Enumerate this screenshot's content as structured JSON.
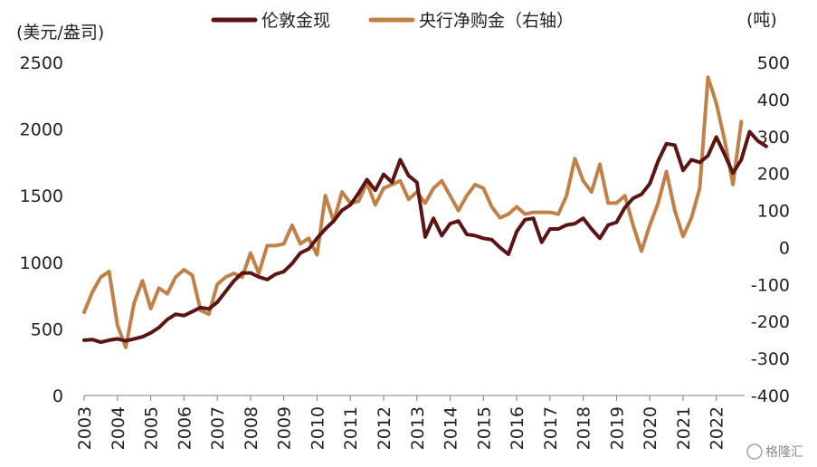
{
  "chart_data": {
    "type": "line",
    "title": "",
    "y_left_label": "(美元/盎司)",
    "y_right_label": "(吨)",
    "xlim": [
      2003,
      2022.85
    ],
    "y_left_lim": [
      0,
      2500
    ],
    "y_right_lim": [
      -400,
      500
    ],
    "x_ticks": [
      "2003",
      "2004",
      "2005",
      "2006",
      "2007",
      "2008",
      "2009",
      "2010",
      "2011",
      "2012",
      "2013",
      "2014",
      "2015",
      "2016",
      "2017",
      "2018",
      "2019",
      "2020",
      "2021",
      "2022"
    ],
    "y_left_ticks": [
      "0",
      "500",
      "1000",
      "1500",
      "2000",
      "2500"
    ],
    "y_right_ticks": [
      "-400",
      "-300",
      "-200",
      "-100",
      "0",
      "100",
      "200",
      "300",
      "400",
      "500"
    ],
    "grid": false,
    "legend_position": "top-center",
    "series": [
      {
        "name": "伦敦金现",
        "axis": "left",
        "color": "#5a1414",
        "points": [
          [
            2003.0,
            415
          ],
          [
            2003.25,
            420
          ],
          [
            2003.5,
            400
          ],
          [
            2003.75,
            415
          ],
          [
            2004.0,
            425
          ],
          [
            2004.25,
            410
          ],
          [
            2004.5,
            425
          ],
          [
            2004.75,
            440
          ],
          [
            2005.0,
            470
          ],
          [
            2005.25,
            510
          ],
          [
            2005.5,
            570
          ],
          [
            2005.75,
            610
          ],
          [
            2006.0,
            600
          ],
          [
            2006.25,
            630
          ],
          [
            2006.5,
            660
          ],
          [
            2006.75,
            650
          ],
          [
            2007.0,
            700
          ],
          [
            2007.25,
            780
          ],
          [
            2007.5,
            860
          ],
          [
            2007.75,
            920
          ],
          [
            2008.0,
            920
          ],
          [
            2008.25,
            890
          ],
          [
            2008.5,
            870
          ],
          [
            2008.75,
            910
          ],
          [
            2009.0,
            930
          ],
          [
            2009.25,
            990
          ],
          [
            2009.5,
            1070
          ],
          [
            2009.75,
            1100
          ],
          [
            2010.0,
            1180
          ],
          [
            2010.25,
            1250
          ],
          [
            2010.5,
            1310
          ],
          [
            2010.75,
            1390
          ],
          [
            2011.0,
            1430
          ],
          [
            2011.25,
            1520
          ],
          [
            2011.5,
            1620
          ],
          [
            2011.75,
            1540
          ],
          [
            2012.0,
            1660
          ],
          [
            2012.25,
            1600
          ],
          [
            2012.5,
            1770
          ],
          [
            2012.75,
            1650
          ],
          [
            2013.0,
            1600
          ],
          [
            2013.25,
            1190
          ],
          [
            2013.5,
            1330
          ],
          [
            2013.75,
            1200
          ],
          [
            2014.0,
            1290
          ],
          [
            2014.25,
            1310
          ],
          [
            2014.5,
            1210
          ],
          [
            2014.75,
            1200
          ],
          [
            2015.0,
            1180
          ],
          [
            2015.25,
            1170
          ],
          [
            2015.5,
            1110
          ],
          [
            2015.75,
            1060
          ],
          [
            2016.0,
            1230
          ],
          [
            2016.25,
            1320
          ],
          [
            2016.5,
            1330
          ],
          [
            2016.75,
            1150
          ],
          [
            2017.0,
            1250
          ],
          [
            2017.25,
            1250
          ],
          [
            2017.5,
            1280
          ],
          [
            2017.75,
            1290
          ],
          [
            2018.0,
            1330
          ],
          [
            2018.25,
            1250
          ],
          [
            2018.5,
            1180
          ],
          [
            2018.75,
            1280
          ],
          [
            2019.0,
            1300
          ],
          [
            2019.25,
            1410
          ],
          [
            2019.5,
            1480
          ],
          [
            2019.75,
            1510
          ],
          [
            2020.0,
            1590
          ],
          [
            2020.25,
            1760
          ],
          [
            2020.5,
            1890
          ],
          [
            2020.75,
            1880
          ],
          [
            2021.0,
            1690
          ],
          [
            2021.25,
            1770
          ],
          [
            2021.5,
            1750
          ],
          [
            2021.75,
            1800
          ],
          [
            2022.0,
            1940
          ],
          [
            2022.25,
            1810
          ],
          [
            2022.5,
            1670
          ],
          [
            2022.75,
            1770
          ],
          [
            2023.0,
            1980
          ],
          [
            2023.25,
            1910
          ],
          [
            2023.5,
            1870
          ]
        ]
      },
      {
        "name": "央行净购金（右轴）",
        "axis": "right",
        "color": "#bf8148",
        "points": [
          [
            2003.0,
            -175
          ],
          [
            2003.25,
            -120
          ],
          [
            2003.5,
            -80
          ],
          [
            2003.75,
            -65
          ],
          [
            2004.0,
            -210
          ],
          [
            2004.25,
            -270
          ],
          [
            2004.5,
            -150
          ],
          [
            2004.75,
            -90
          ],
          [
            2005.0,
            -165
          ],
          [
            2005.25,
            -110
          ],
          [
            2005.5,
            -125
          ],
          [
            2005.75,
            -80
          ],
          [
            2006.0,
            -60
          ],
          [
            2006.25,
            -75
          ],
          [
            2006.5,
            -170
          ],
          [
            2006.75,
            -180
          ],
          [
            2007.0,
            -100
          ],
          [
            2007.25,
            -80
          ],
          [
            2007.5,
            -70
          ],
          [
            2007.75,
            -80
          ],
          [
            2008.0,
            -15
          ],
          [
            2008.25,
            -70
          ],
          [
            2008.5,
            5
          ],
          [
            2008.75,
            5
          ],
          [
            2009.0,
            10
          ],
          [
            2009.25,
            60
          ],
          [
            2009.5,
            10
          ],
          [
            2009.75,
            25
          ],
          [
            2010.0,
            -20
          ],
          [
            2010.25,
            140
          ],
          [
            2010.5,
            70
          ],
          [
            2010.75,
            150
          ],
          [
            2011.0,
            120
          ],
          [
            2011.25,
            125
          ],
          [
            2011.5,
            175
          ],
          [
            2011.75,
            115
          ],
          [
            2012.0,
            160
          ],
          [
            2012.25,
            170
          ],
          [
            2012.5,
            180
          ],
          [
            2012.75,
            130
          ],
          [
            2013.0,
            150
          ],
          [
            2013.25,
            120
          ],
          [
            2013.5,
            160
          ],
          [
            2013.75,
            180
          ],
          [
            2014.0,
            140
          ],
          [
            2014.25,
            100
          ],
          [
            2014.5,
            140
          ],
          [
            2014.75,
            170
          ],
          [
            2015.0,
            160
          ],
          [
            2015.25,
            110
          ],
          [
            2015.5,
            80
          ],
          [
            2015.75,
            90
          ],
          [
            2016.0,
            110
          ],
          [
            2016.25,
            90
          ],
          [
            2016.5,
            95
          ],
          [
            2016.75,
            95
          ],
          [
            2017.0,
            95
          ],
          [
            2017.25,
            90
          ],
          [
            2017.5,
            140
          ],
          [
            2017.75,
            240
          ],
          [
            2018.0,
            180
          ],
          [
            2018.25,
            150
          ],
          [
            2018.5,
            225
          ],
          [
            2018.75,
            120
          ],
          [
            2019.0,
            120
          ],
          [
            2019.25,
            140
          ],
          [
            2019.5,
            60
          ],
          [
            2019.75,
            -10
          ],
          [
            2020.0,
            60
          ],
          [
            2020.25,
            120
          ],
          [
            2020.5,
            205
          ],
          [
            2020.75,
            100
          ],
          [
            2021.0,
            30
          ],
          [
            2021.25,
            80
          ],
          [
            2021.5,
            160
          ],
          [
            2021.75,
            460
          ],
          [
            2022.0,
            390
          ],
          [
            2022.25,
            290
          ],
          [
            2022.5,
            170
          ],
          [
            2022.75,
            340
          ]
        ]
      }
    ]
  },
  "watermark": "格隆汇"
}
